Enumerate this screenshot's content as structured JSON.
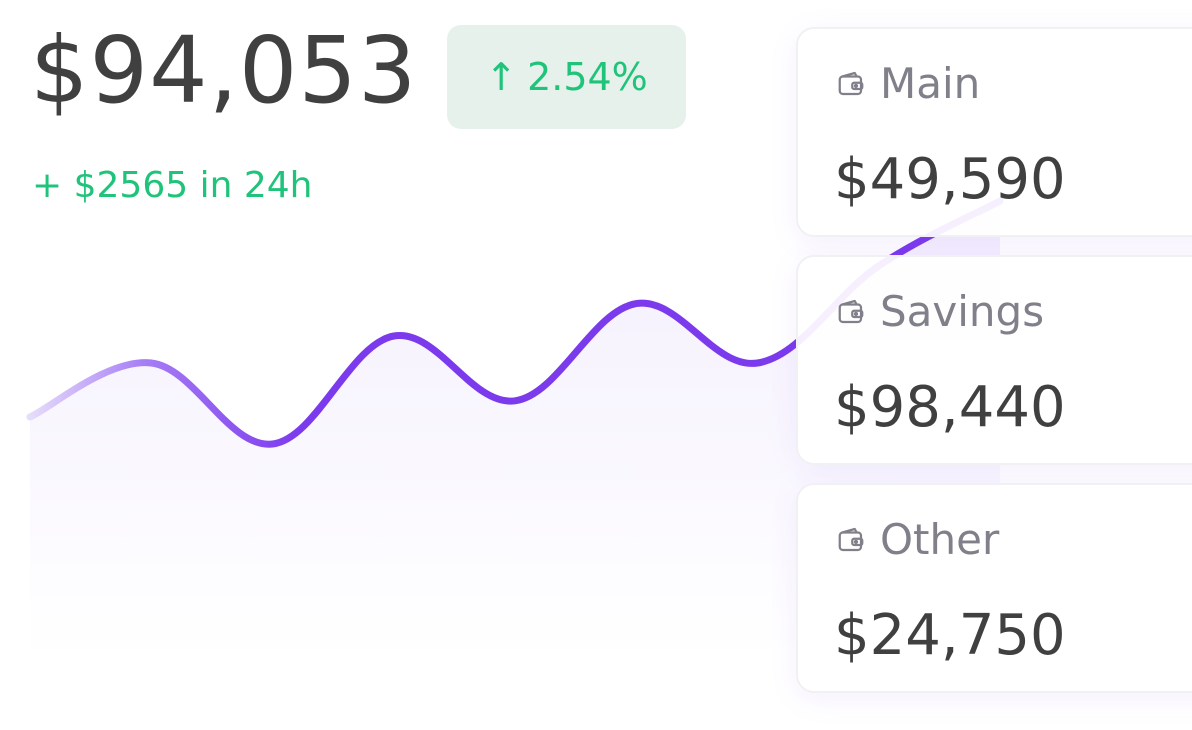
{
  "summary": {
    "total": "$94,053",
    "change_percent": "2.54%",
    "change_24h": "+ $2565 in 24h"
  },
  "colors": {
    "accent": "#7c3aed",
    "positive": "#20c37a",
    "badge_bg": "#e7f1ec",
    "text_primary": "#404040",
    "text_muted": "#80808a"
  },
  "chart_data": {
    "type": "line",
    "x": [
      0,
      1,
      2,
      3,
      4,
      5,
      6,
      7,
      8
    ],
    "series": [
      {
        "values": [
          45,
          55,
          40,
          60,
          48,
          66,
          55,
          73,
          85
        ]
      }
    ],
    "title": "",
    "xlabel": "",
    "ylabel": "",
    "grid": false
  },
  "wallets": [
    {
      "name": "Main",
      "amount": "$49,590",
      "icon": "wallet-icon"
    },
    {
      "name": "Savings",
      "amount": "$98,440",
      "icon": "wallet-icon"
    },
    {
      "name": "Other",
      "amount": "$24,750",
      "icon": "wallet-icon"
    }
  ]
}
